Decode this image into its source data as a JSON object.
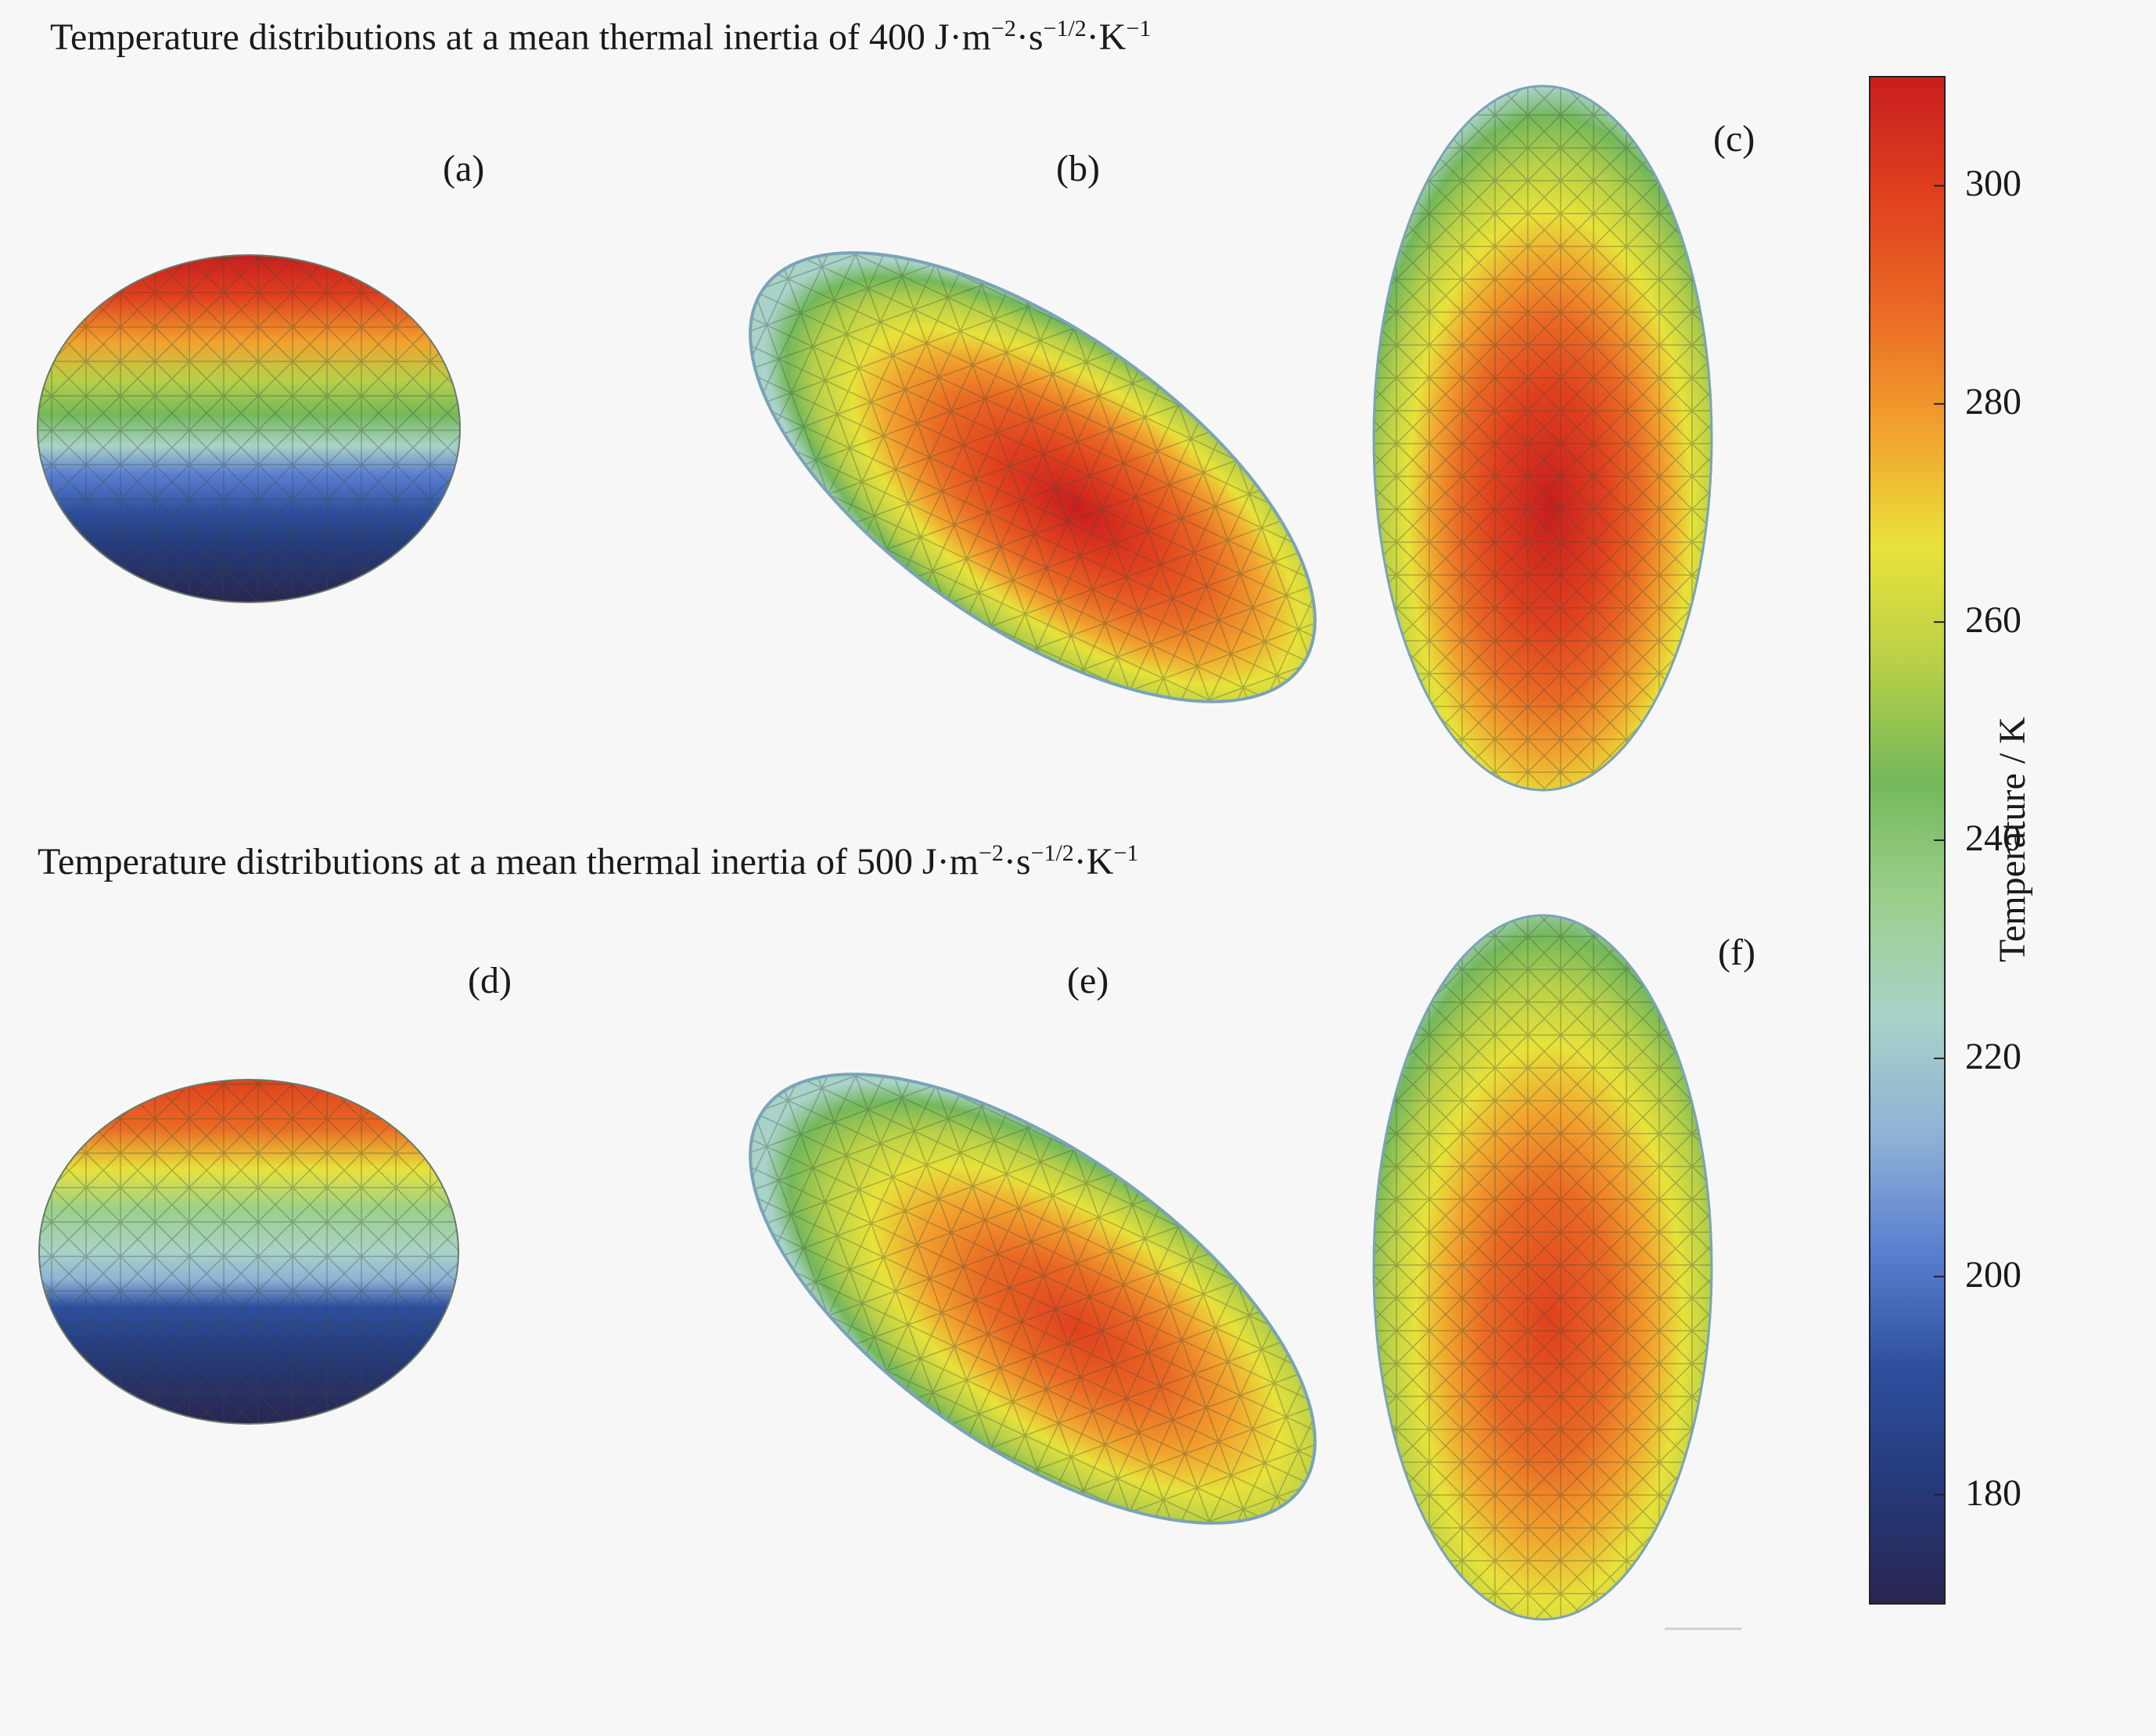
{
  "rows": [
    {
      "title_prefix": "Temperature distributions at a mean thermal inertia of 400 J·m",
      "exp1": "−2",
      "mid1": "·s",
      "exp2": "−1/2",
      "mid2": "·K",
      "exp3": "−1"
    },
    {
      "title_prefix": "Temperature distributions at a mean thermal inertia of 500 J·m",
      "exp1": "−2",
      "mid1": "·s",
      "exp2": "−1/2",
      "mid2": "·K",
      "exp3": "−1"
    }
  ],
  "panels": [
    "(a)",
    "(b)",
    "(c)",
    "(d)",
    "(e)",
    "(f)"
  ],
  "colorbar": {
    "title": "Temperature / K",
    "min": 170,
    "max": 310,
    "ticks": [
      "180",
      "200",
      "220",
      "240",
      "260",
      "280",
      "300"
    ],
    "tick_values": [
      180,
      200,
      220,
      240,
      260,
      280,
      300
    ],
    "colors": [
      "#2a2650",
      "#253a7a",
      "#2d4f9e",
      "#5b7fd0",
      "#8fb3d6",
      "#a9d2c8",
      "#9bd08c",
      "#74b85a",
      "#b8d048",
      "#e8e23a",
      "#f2a22e",
      "#ea6a24",
      "#e0401e",
      "#c81e1e"
    ]
  }
}
